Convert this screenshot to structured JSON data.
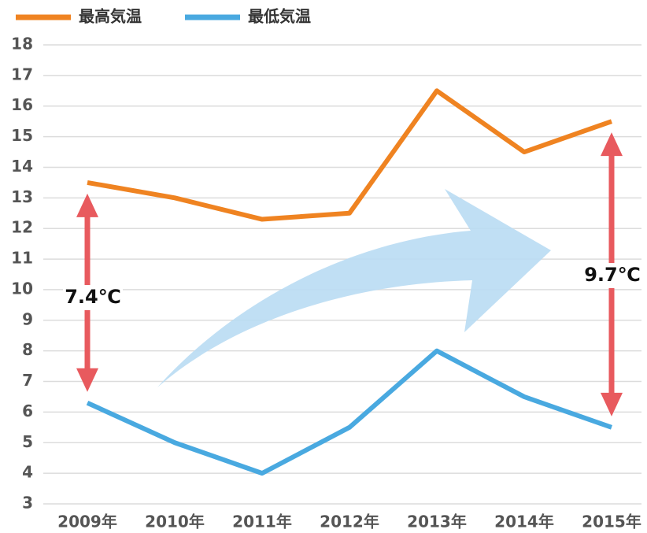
{
  "chart_data": {
    "type": "line",
    "categories": [
      "2009年",
      "2010年",
      "2011年",
      "2012年",
      "2013年",
      "2014年",
      "2015年"
    ],
    "series": [
      {
        "name": "最高気温",
        "color": "#ef8321",
        "values": [
          13.5,
          13.0,
          12.3,
          12.5,
          16.5,
          14.5,
          15.5
        ]
      },
      {
        "name": "最低気温",
        "color": "#49a9e0",
        "values": [
          6.3,
          5.0,
          4.0,
          5.5,
          8.0,
          6.5,
          5.5
        ]
      }
    ],
    "ylim": [
      3,
      18
    ],
    "yticks": [
      3,
      4,
      5,
      6,
      7,
      8,
      9,
      10,
      11,
      12,
      13,
      14,
      15,
      16,
      17,
      18
    ],
    "grid": true,
    "legend": "top-left",
    "annotations": [
      {
        "text": "7.4℃"
      },
      {
        "text": "9.7℃"
      }
    ]
  }
}
